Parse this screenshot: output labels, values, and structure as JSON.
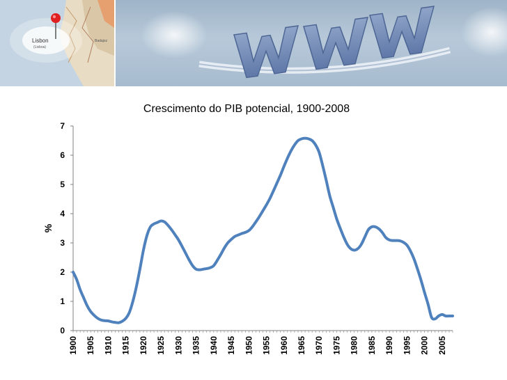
{
  "banner": {
    "map_label_city": "Lisbon",
    "map_label_local": "(Lisboa)",
    "map_label_other": "Badajoz"
  },
  "chart_data": {
    "type": "line",
    "title": "Crescimento do PIB potencial, 1900-2008",
    "xlabel": "",
    "ylabel": "%",
    "xlim": [
      1900,
      2008
    ],
    "ylim": [
      0,
      7
    ],
    "yticks": [
      0,
      1,
      2,
      3,
      4,
      5,
      6,
      7
    ],
    "xticks": [
      1900,
      1905,
      1910,
      1915,
      1920,
      1925,
      1930,
      1935,
      1940,
      1945,
      1950,
      1955,
      1960,
      1965,
      1970,
      1975,
      1980,
      1985,
      1990,
      1995,
      2000,
      2005
    ],
    "grid": false,
    "line_color": "#4f81bd",
    "series": [
      {
        "x": [
          1900,
          1901,
          1902,
          1903,
          1904,
          1905,
          1906,
          1907,
          1908,
          1909,
          1910,
          1911,
          1912,
          1913,
          1914,
          1915,
          1916,
          1917,
          1918,
          1919,
          1920,
          1921,
          1922,
          1923,
          1924,
          1925,
          1926,
          1927,
          1928,
          1929,
          1930,
          1931,
          1932,
          1933,
          1934,
          1935,
          1936,
          1937,
          1938,
          1939,
          1940,
          1941,
          1942,
          1943,
          1944,
          1945,
          1946,
          1947,
          1948,
          1949,
          1950,
          1951,
          1952,
          1953,
          1954,
          1955,
          1956,
          1957,
          1958,
          1959,
          1960,
          1961,
          1962,
          1963,
          1964,
          1965,
          1966,
          1967,
          1968,
          1969,
          1970,
          1971,
          1972,
          1973,
          1974,
          1975,
          1976,
          1977,
          1978,
          1979,
          1980,
          1981,
          1982,
          1983,
          1984,
          1985,
          1986,
          1987,
          1988,
          1989,
          1990,
          1991,
          1992,
          1993,
          1994,
          1995,
          1996,
          1997,
          1998,
          1999,
          2000,
          2001,
          2002,
          2003,
          2004,
          2005,
          2006,
          2007,
          2008
        ],
        "values": [
          2.0,
          1.75,
          1.4,
          1.12,
          0.85,
          0.65,
          0.52,
          0.42,
          0.36,
          0.34,
          0.33,
          0.3,
          0.28,
          0.27,
          0.32,
          0.42,
          0.62,
          1.0,
          1.5,
          2.1,
          2.75,
          3.25,
          3.55,
          3.65,
          3.7,
          3.75,
          3.72,
          3.6,
          3.45,
          3.28,
          3.1,
          2.88,
          2.65,
          2.42,
          2.22,
          2.1,
          2.08,
          2.1,
          2.12,
          2.15,
          2.22,
          2.4,
          2.6,
          2.82,
          3.0,
          3.12,
          3.22,
          3.27,
          3.32,
          3.36,
          3.42,
          3.55,
          3.72,
          3.9,
          4.1,
          4.3,
          4.52,
          4.78,
          5.05,
          5.32,
          5.62,
          5.9,
          6.15,
          6.35,
          6.5,
          6.56,
          6.58,
          6.56,
          6.5,
          6.35,
          6.1,
          5.65,
          5.15,
          4.62,
          4.22,
          3.82,
          3.5,
          3.2,
          2.95,
          2.8,
          2.75,
          2.8,
          2.95,
          3.2,
          3.45,
          3.55,
          3.55,
          3.48,
          3.35,
          3.18,
          3.1,
          3.08,
          3.08,
          3.07,
          3.02,
          2.92,
          2.72,
          2.45,
          2.1,
          1.72,
          1.3,
          0.9,
          0.45,
          0.4,
          0.5,
          0.55,
          0.5,
          0.5,
          0.5
        ]
      }
    ]
  }
}
